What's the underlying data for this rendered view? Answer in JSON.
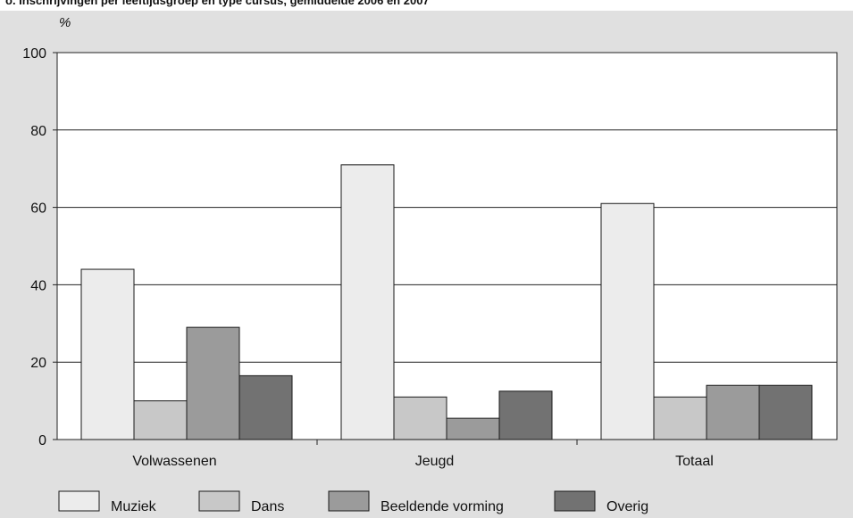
{
  "title_cut": "o. Inschrijvingen per leeftijdsgroep en type cursus, gemiddelde 2006 en 2007",
  "chart_data": {
    "type": "bar",
    "title": "",
    "ylabel": "%",
    "xlabel": "",
    "ylim": [
      0,
      100
    ],
    "yticks": [
      0,
      20,
      40,
      60,
      80,
      100
    ],
    "grid": true,
    "legend_position": "bottom",
    "categories": [
      "Volwassenen",
      "Jeugd",
      "Totaal"
    ],
    "series": [
      {
        "name": "Muziek",
        "values": [
          44,
          71,
          61
        ],
        "color": "#ececec"
      },
      {
        "name": "Dans",
        "values": [
          10,
          11,
          11
        ],
        "color": "#c8c8c8"
      },
      {
        "name": "Beeldende vorming",
        "values": [
          29,
          5.5,
          14
        ],
        "color": "#9b9b9b"
      },
      {
        "name": "Overig",
        "values": [
          16.5,
          12.5,
          14
        ],
        "color": "#727272"
      }
    ]
  }
}
